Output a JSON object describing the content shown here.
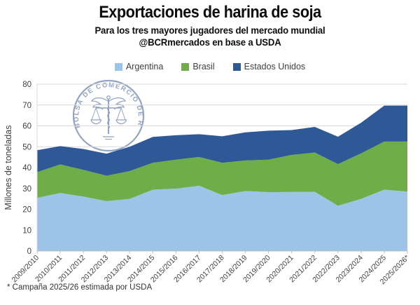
{
  "header": {
    "title": "Exportaciones de harina de soja",
    "subtitle": "Para los tres mayores jugadores del mercado mundial",
    "attribution": "@BCRmercados en base a USDA"
  },
  "watermark": {
    "text": "BOLSA DE COMERCIO DE ROSARIO"
  },
  "footnote": "* Campaña 2025/26 estimada por USDA",
  "colors": {
    "argentina": "#9DC3E6",
    "brasil": "#6FAD49",
    "estados_unidos": "#2F5897",
    "gridline": "#D9D9D9",
    "axis": "#BFBFBF",
    "axis_text": "#3F3F3F",
    "watermark": "#8095B5"
  },
  "chart_data": {
    "type": "area",
    "stacked": true,
    "title": "Exportaciones de harina de soja",
    "subtitle": "Para los tres mayores jugadores del mercado mundial",
    "source": "@BCRmercados en base a USDA",
    "footnote": "* Campaña 2025/26 estimada por USDA",
    "xlabel": "",
    "ylabel": "Millones de toneladas",
    "ylim": [
      0,
      80
    ],
    "ytick_step": 10,
    "grid": true,
    "legend_position": "top",
    "categories": [
      "2009/2010",
      "2010/2011",
      "2011/2012",
      "2012/2013",
      "2013/2014",
      "2014/2015",
      "2015/2016",
      "2016/2017",
      "2017/2018",
      "2018/2019",
      "2019/2020",
      "2020/2021",
      "2021/2022",
      "2022/2023",
      "2023/2024",
      "2024/2025",
      "2025/2026*"
    ],
    "series": [
      {
        "name": "Argentina",
        "color": "#9DC3E6",
        "values": [
          25.5,
          27.8,
          26.1,
          23.9,
          25.0,
          29.4,
          29.9,
          31.3,
          26.8,
          28.8,
          28.2,
          28.3,
          28.4,
          21.7,
          25.0,
          29.4,
          28.5
        ]
      },
      {
        "name": "Brasil",
        "color": "#6FAD49",
        "values": [
          12.3,
          13.7,
          12.8,
          12.2,
          13.3,
          12.9,
          13.9,
          13.8,
          15.5,
          14.6,
          15.6,
          17.8,
          18.8,
          20.0,
          21.8,
          23.1,
          24.0
        ]
      },
      {
        "name": "Estados Unidos",
        "color": "#2F5897",
        "values": [
          10.5,
          8.8,
          10.0,
          10.6,
          11.7,
          12.4,
          11.7,
          10.9,
          12.7,
          13.5,
          13.9,
          11.9,
          12.3,
          13.1,
          14.7,
          17.2,
          17.2
        ]
      }
    ]
  }
}
